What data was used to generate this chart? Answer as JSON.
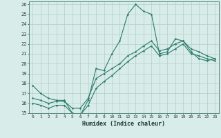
{
  "xlabel": "Humidex (Indice chaleur)",
  "x_values": [
    0,
    1,
    2,
    3,
    4,
    5,
    6,
    7,
    8,
    9,
    10,
    11,
    12,
    13,
    14,
    15,
    16,
    17,
    18,
    19,
    20,
    21,
    22,
    23
  ],
  "line1": [
    17.8,
    17.0,
    16.5,
    16.3,
    16.3,
    15.0,
    14.8,
    16.3,
    19.5,
    19.3,
    21.0,
    22.3,
    25.0,
    26.0,
    25.3,
    25.0,
    21.0,
    21.2,
    22.5,
    22.3,
    21.2,
    20.5,
    20.3,
    20.5
  ],
  "line2": [
    16.5,
    16.3,
    16.0,
    16.2,
    16.2,
    15.5,
    15.5,
    16.5,
    18.5,
    19.0,
    19.5,
    20.0,
    20.8,
    21.2,
    21.8,
    22.3,
    21.3,
    21.5,
    22.0,
    22.3,
    21.5,
    21.2,
    20.8,
    20.5
  ],
  "line3": [
    16.0,
    15.8,
    15.5,
    15.8,
    15.8,
    15.0,
    14.8,
    15.8,
    17.5,
    18.2,
    18.8,
    19.5,
    20.2,
    20.8,
    21.3,
    21.8,
    20.8,
    21.0,
    21.5,
    22.0,
    21.0,
    20.8,
    20.5,
    20.3
  ],
  "line_color": "#2a7a6a",
  "bg_color": "#d8ecea",
  "grid_color": "#b2ceca",
  "ylim": [
    15,
    26
  ],
  "xlim": [
    -0.5,
    23.5
  ],
  "yticks": [
    15,
    16,
    17,
    18,
    19,
    20,
    21,
    22,
    23,
    24,
    25,
    26
  ],
  "xticks": [
    0,
    1,
    2,
    3,
    4,
    5,
    6,
    7,
    8,
    9,
    10,
    11,
    12,
    13,
    14,
    15,
    16,
    17,
    18,
    19,
    20,
    21,
    22,
    23
  ]
}
